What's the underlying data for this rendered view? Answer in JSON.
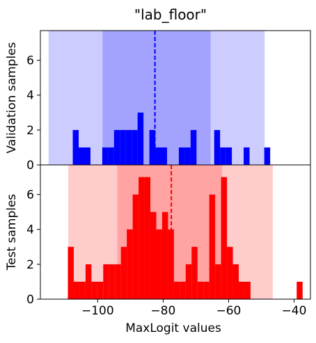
{
  "chart_data": {
    "type": "histogram",
    "title": "\"lab_floor\"",
    "xlabel": "MaxLogit values",
    "xlim": [
      -117.5,
      -35.0
    ],
    "xticks": [
      -100,
      -80,
      -60,
      -40
    ],
    "xtick_labels": [
      "−100",
      "−80",
      "−60",
      "−40"
    ],
    "bin_width": 1.8,
    "panels": [
      {
        "name": "validation",
        "ylabel": "Validation samples",
        "ylim": [
          0,
          7.7
        ],
        "yticks": [
          0,
          2,
          4,
          6
        ],
        "color": "#0000ff",
        "band_color": "#0000ff",
        "outer_band": [
          -115.0,
          -49.0
        ],
        "inner_band": [
          -98.5,
          -65.5
        ],
        "mean_line": -82.5,
        "bars": [
          {
            "x": -106.7,
            "count": 2
          },
          {
            "x": -104.9,
            "count": 1
          },
          {
            "x": -103.1,
            "count": 1
          },
          {
            "x": -97.7,
            "count": 1
          },
          {
            "x": -95.9,
            "count": 1
          },
          {
            "x": -94.1,
            "count": 2
          },
          {
            "x": -92.3,
            "count": 2
          },
          {
            "x": -90.5,
            "count": 2
          },
          {
            "x": -88.7,
            "count": 2
          },
          {
            "x": -86.9,
            "count": 3
          },
          {
            "x": -83.3,
            "count": 2
          },
          {
            "x": -81.5,
            "count": 1
          },
          {
            "x": -79.7,
            "count": 1
          },
          {
            "x": -74.3,
            "count": 1
          },
          {
            "x": -72.5,
            "count": 1
          },
          {
            "x": -70.7,
            "count": 2
          },
          {
            "x": -63.5,
            "count": 2
          },
          {
            "x": -61.7,
            "count": 1
          },
          {
            "x": -59.9,
            "count": 1
          },
          {
            "x": -54.5,
            "count": 1
          },
          {
            "x": -48.2,
            "count": 1
          }
        ]
      },
      {
        "name": "test",
        "ylabel": "Test samples",
        "ylim": [
          0,
          7.7
        ],
        "yticks": [
          0,
          2,
          4,
          6
        ],
        "color": "#ff0000",
        "band_color": "#ff0000",
        "outer_band": [
          -109.0,
          -46.5
        ],
        "inner_band": [
          -94.0,
          -62.0
        ],
        "mean_line": -77.5,
        "bars": [
          {
            "x": -108.2,
            "count": 3
          },
          {
            "x": -106.4,
            "count": 1
          },
          {
            "x": -104.6,
            "count": 1
          },
          {
            "x": -102.8,
            "count": 2
          },
          {
            "x": -101.0,
            "count": 1
          },
          {
            "x": -99.2,
            "count": 1
          },
          {
            "x": -97.4,
            "count": 2
          },
          {
            "x": -95.6,
            "count": 2
          },
          {
            "x": -93.8,
            "count": 2
          },
          {
            "x": -92.0,
            "count": 3
          },
          {
            "x": -90.2,
            "count": 4
          },
          {
            "x": -88.4,
            "count": 6
          },
          {
            "x": -86.6,
            "count": 7
          },
          {
            "x": -84.8,
            "count": 7
          },
          {
            "x": -83.0,
            "count": 5
          },
          {
            "x": -81.2,
            "count": 4
          },
          {
            "x": -79.4,
            "count": 5
          },
          {
            "x": -77.6,
            "count": 4
          },
          {
            "x": -75.8,
            "count": 1
          },
          {
            "x": -74.0,
            "count": 1
          },
          {
            "x": -72.2,
            "count": 2
          },
          {
            "x": -70.4,
            "count": 3
          },
          {
            "x": -68.6,
            "count": 1
          },
          {
            "x": -66.8,
            "count": 1
          },
          {
            "x": -65.0,
            "count": 6
          },
          {
            "x": -63.2,
            "count": 2
          },
          {
            "x": -61.4,
            "count": 7
          },
          {
            "x": -59.6,
            "count": 3
          },
          {
            "x": -57.8,
            "count": 2
          },
          {
            "x": -56.0,
            "count": 1
          },
          {
            "x": -54.2,
            "count": 1
          },
          {
            "x": -38.3,
            "count": 1
          }
        ]
      }
    ]
  }
}
